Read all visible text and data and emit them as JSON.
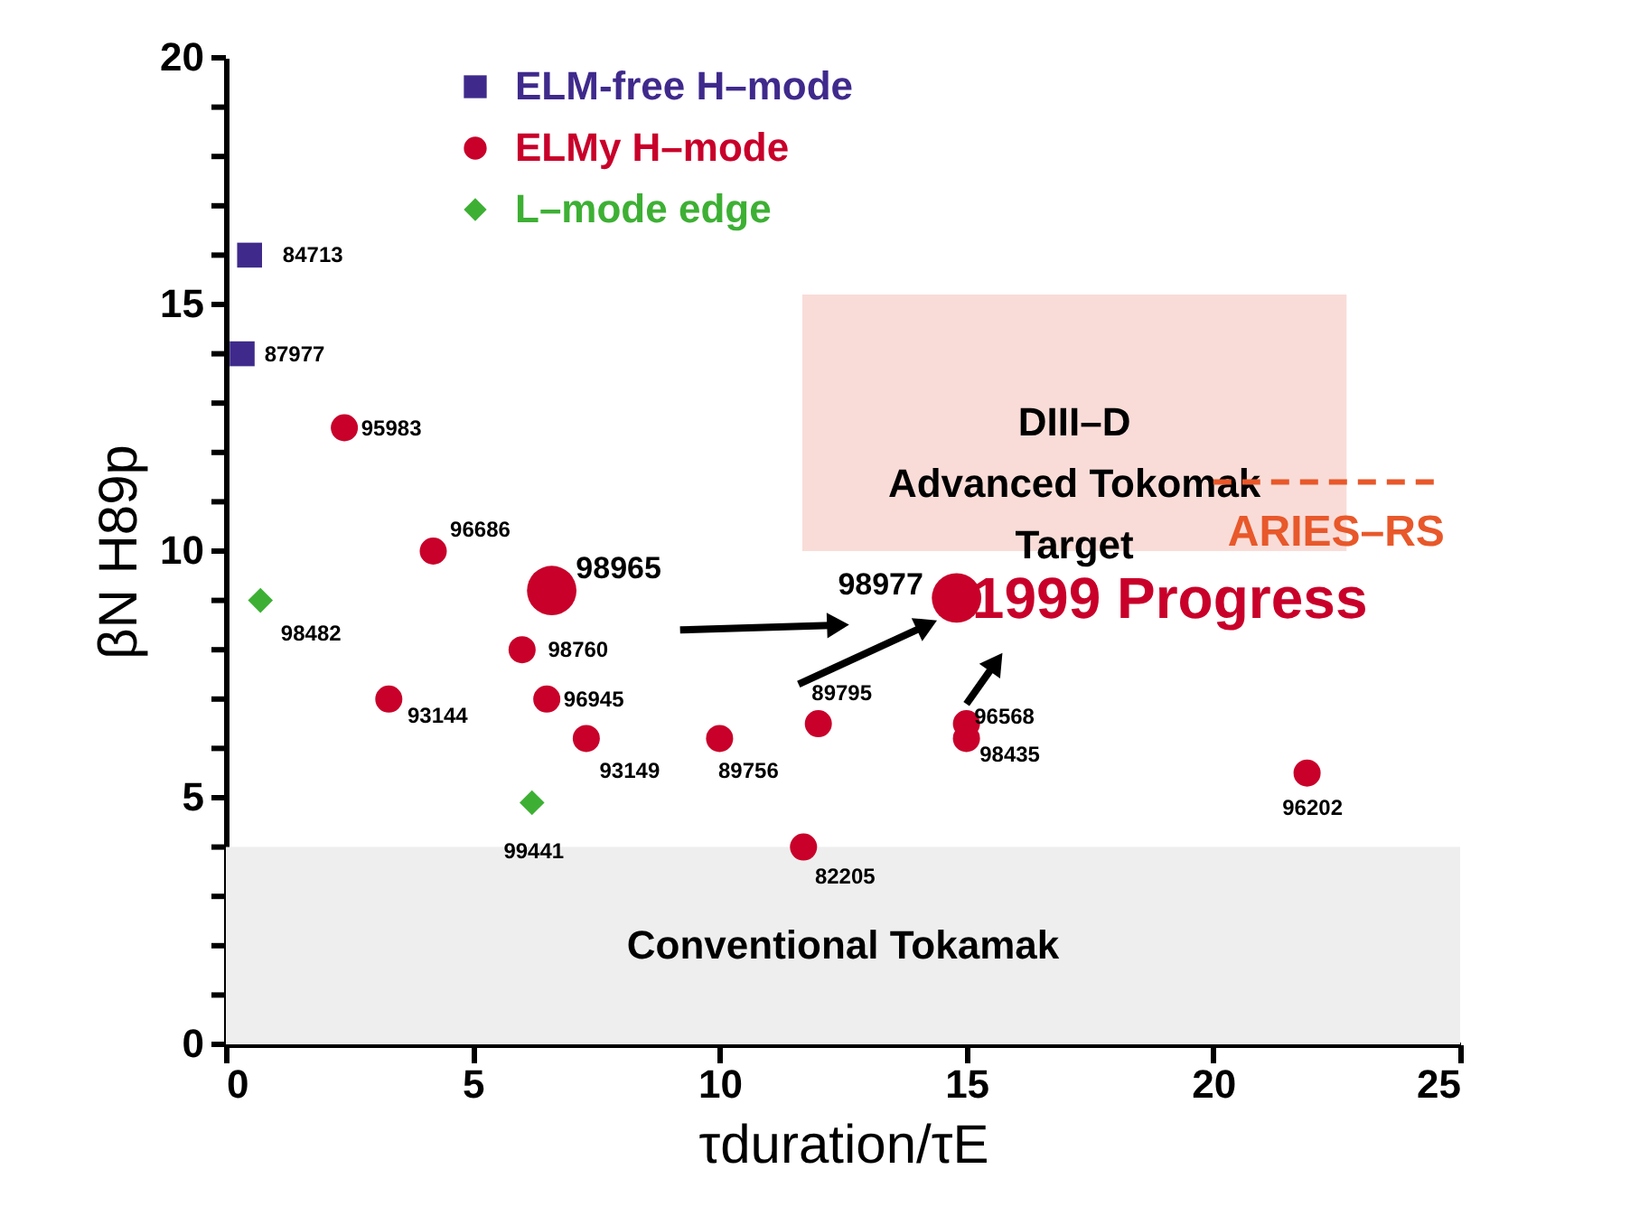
{
  "chart_data": {
    "type": "scatter",
    "xlabel": "τduration/τE",
    "ylabel": "βN H89p",
    "xlim": [
      0,
      25
    ],
    "xticks": [
      0,
      5,
      10,
      15,
      20,
      25
    ],
    "ylim": [
      0,
      20
    ],
    "yticks": [
      0,
      {
        "value": 1,
        "label": null
      },
      {
        "value": 2,
        "label": null
      },
      {
        "value": 3,
        "label": null
      },
      {
        "value": 4,
        "label": null
      },
      5,
      {
        "value": 6,
        "label": null
      },
      {
        "value": 7,
        "label": null
      },
      {
        "value": 8,
        "label": null
      },
      {
        "value": 9,
        "label": null
      },
      10,
      {
        "value": 11,
        "label": null
      },
      {
        "value": 12,
        "label": null
      },
      {
        "value": 13,
        "label": null
      },
      {
        "value": 14,
        "label": null
      },
      15,
      {
        "value": 16,
        "label": null
      },
      {
        "value": 17,
        "label": null
      },
      {
        "value": 18,
        "label": null
      },
      {
        "value": 19,
        "label": null
      },
      20
    ],
    "grid": false,
    "legend": "top left",
    "series": [
      {
        "name": "ELM-free H–mode",
        "color": "#3f2a8c",
        "marker": "square",
        "x": [
          0.48,
          0.33
        ],
        "values": [
          16.0,
          14.0
        ]
      },
      {
        "name": "ELMy H–mode",
        "color": "#c8002a",
        "marker": "circle",
        "type": "bubble",
        "x": [
          2.4,
          4.2,
          6.6,
          6.0,
          3.3,
          6.5,
          7.3,
          10.0,
          12.0,
          11.7,
          14.8,
          15.0,
          15.0,
          21.9
        ],
        "values": [
          12.5,
          10.0,
          9.2,
          8.0,
          7.0,
          7.0,
          6.2,
          6.2,
          6.5,
          4.0,
          9.05,
          6.5,
          6.2,
          5.5
        ],
        "sizes": [
          0.3,
          0.3,
          1,
          0.3,
          0.3,
          0.3,
          0.3,
          0.3,
          0.3,
          0.3,
          1,
          0.3,
          0.3,
          0.3
        ]
      },
      {
        "name": "L–mode edge",
        "color": "#3db034",
        "marker": "diamond",
        "x": [
          0.7,
          6.2
        ],
        "values": [
          9.0,
          4.9
        ]
      }
    ],
    "bands": [
      {
        "axis": "y",
        "from": 10,
        "to": 15.2,
        "label": "DIII–D\nAdvanced Tokomak\nTarget",
        "color": "#f9dcd8"
      },
      {
        "axis": "y",
        "from": 0,
        "to": 4,
        "label": "Conventional Tokamak",
        "color": "#eeeeee"
      }
    ],
    "ref_lines": [
      {
        "axis": "y",
        "value": 11.4,
        "label": "ARIES–RS",
        "color": "#e8582a",
        "line_style": "dashed"
      }
    ],
    "annotations": [
      {
        "text": "84713",
        "x": 0.48,
        "y": 16.0
      },
      {
        "text": "87977",
        "x": 0.33,
        "y": 14.0
      },
      {
        "text": "95983",
        "x": 2.4,
        "y": 12.5
      },
      {
        "text": "96686",
        "x": 4.2,
        "y": 10.0
      },
      {
        "text": "98965",
        "x": 6.6,
        "y": 9.2
      },
      {
        "text": "98482",
        "x": 0.7,
        "y": 9.0
      },
      {
        "text": "98760",
        "x": 6.0,
        "y": 8.0
      },
      {
        "text": "93144",
        "x": 3.3,
        "y": 7.0
      },
      {
        "text": "96945",
        "x": 6.5,
        "y": 7.0
      },
      {
        "text": "93149",
        "x": 7.3,
        "y": 6.2
      },
      {
        "text": "89756",
        "x": 10.0,
        "y": 6.2
      },
      {
        "text": "89795",
        "x": 12.0,
        "y": 6.5
      },
      {
        "text": "82205",
        "x": 11.7,
        "y": 4.0
      },
      {
        "text": "98977",
        "x": 14.8,
        "y": 9.05
      },
      {
        "text": "96568",
        "x": 15.0,
        "y": 6.5
      },
      {
        "text": "98435",
        "x": 15.0,
        "y": 6.2
      },
      {
        "text": "96202",
        "x": 21.9,
        "y": 5.5
      },
      {
        "text": "99441",
        "x": 6.2,
        "y": 4.9
      },
      {
        "text": "1999 Progress",
        "x": 14.8,
        "y": 9.05
      }
    ]
  }
}
